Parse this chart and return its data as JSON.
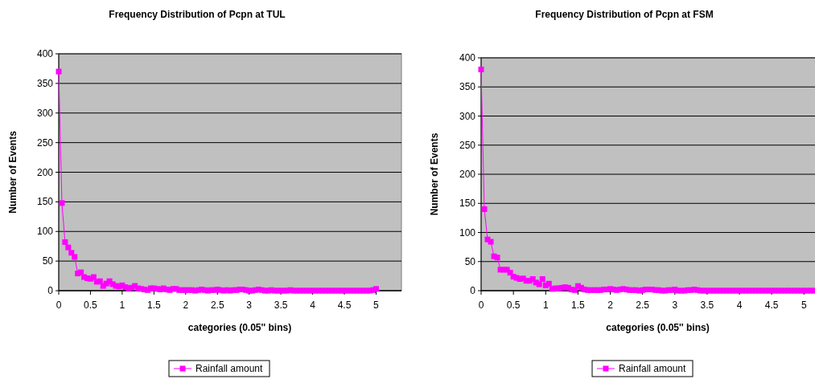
{
  "chart_data": [
    {
      "type": "line",
      "title": "Frequency Distribution of Pcpn at TUL",
      "xlabel": "categories (0.05'' bins)",
      "ylabel": "Number of Events",
      "xlim": [
        0,
        5.4
      ],
      "xticks": [
        0,
        0.5,
        1,
        1.5,
        2,
        2.5,
        3,
        3.5,
        4,
        4.5,
        5
      ],
      "ylim": [
        0,
        400
      ],
      "yticks": [
        0,
        50,
        100,
        150,
        200,
        250,
        300,
        350,
        400
      ],
      "grid": "y",
      "legend": "bottom",
      "marker": "square",
      "series": [
        {
          "name": "Rainfall amount",
          "color": "#ff00ff",
          "x": [
            0,
            0.05,
            0.1,
            0.15,
            0.2,
            0.25,
            0.3,
            0.35,
            0.4,
            0.45,
            0.5,
            0.55,
            0.6,
            0.65,
            0.7,
            0.75,
            0.8,
            0.85,
            0.9,
            0.95,
            1,
            1.05,
            1.1,
            1.15,
            1.2,
            1.25,
            1.3,
            1.35,
            1.4,
            1.45,
            1.5,
            1.55,
            1.6,
            1.65,
            1.7,
            1.75,
            1.8,
            1.85,
            1.9,
            1.95,
            2,
            2.05,
            2.1,
            2.15,
            2.2,
            2.25,
            2.3,
            2.35,
            2.4,
            2.45,
            2.5,
            2.55,
            2.6,
            2.65,
            2.7,
            2.75,
            2.8,
            2.85,
            2.9,
            2.95,
            3,
            3.05,
            3.1,
            3.15,
            3.2,
            3.25,
            3.3,
            3.35,
            3.4,
            3.45,
            3.5,
            3.55,
            3.6,
            3.65,
            3.7,
            3.75,
            3.8,
            3.85,
            3.9,
            3.95,
            4,
            4.05,
            4.1,
            4.15,
            4.2,
            4.25,
            4.3,
            4.35,
            4.4,
            4.45,
            4.5,
            4.55,
            4.6,
            4.65,
            4.7,
            4.75,
            4.8,
            4.85,
            4.9,
            4.95,
            5
          ],
          "values": [
            370,
            148,
            82,
            73,
            64,
            57,
            29,
            31,
            23,
            21,
            20,
            23,
            15,
            16,
            8,
            12,
            16,
            11,
            8,
            7,
            9,
            6,
            4,
            5,
            8,
            4,
            3,
            2,
            1,
            4,
            4,
            3,
            2,
            4,
            2,
            1,
            3,
            3,
            1,
            1,
            1,
            1,
            1,
            0,
            1,
            2,
            1,
            0,
            1,
            1,
            2,
            1,
            0,
            1,
            0,
            1,
            1,
            2,
            2,
            1,
            0,
            0,
            1,
            2,
            1,
            0,
            0,
            1,
            0,
            0,
            0,
            0,
            0,
            1,
            0,
            0,
            0,
            0,
            0,
            0,
            0,
            0,
            0,
            0,
            0,
            0,
            0,
            0,
            0,
            0,
            0,
            0,
            0,
            0,
            0,
            0,
            0,
            0,
            0,
            1,
            3
          ]
        }
      ]
    },
    {
      "type": "line",
      "title": "Frequency Distribution of Pcpn at FSM",
      "xlabel": "categories (0.05'' bins)",
      "ylabel": "Number of Events",
      "xlim": [
        0,
        5.27
      ],
      "xticks": [
        0,
        0.5,
        1,
        1.5,
        2,
        2.5,
        3,
        3.5,
        4,
        4.5,
        5
      ],
      "ylim": [
        0,
        400
      ],
      "yticks": [
        0,
        50,
        100,
        150,
        200,
        250,
        300,
        350,
        400
      ],
      "grid": "y",
      "legend": "bottom",
      "marker": "square",
      "series": [
        {
          "name": "Rainfall amount",
          "color": "#ff00ff",
          "x": [
            0,
            0.05,
            0.1,
            0.15,
            0.2,
            0.25,
            0.3,
            0.35,
            0.4,
            0.45,
            0.5,
            0.55,
            0.6,
            0.65,
            0.7,
            0.75,
            0.8,
            0.85,
            0.9,
            0.95,
            1,
            1.05,
            1.1,
            1.15,
            1.2,
            1.25,
            1.3,
            1.35,
            1.4,
            1.45,
            1.5,
            1.55,
            1.6,
            1.65,
            1.7,
            1.75,
            1.8,
            1.85,
            1.9,
            1.95,
            2,
            2.05,
            2.1,
            2.15,
            2.2,
            2.25,
            2.3,
            2.35,
            2.4,
            2.45,
            2.5,
            2.55,
            2.6,
            2.65,
            2.7,
            2.75,
            2.8,
            2.85,
            2.9,
            2.95,
            3,
            3.05,
            3.1,
            3.15,
            3.2,
            3.25,
            3.3,
            3.35,
            3.4,
            3.45,
            3.5,
            3.55,
            3.6,
            3.65,
            3.7,
            3.75,
            3.8,
            3.85,
            3.9,
            3.95,
            4,
            4.05,
            4.1,
            4.15,
            4.2,
            4.25,
            4.3,
            4.35,
            4.4,
            4.45,
            4.5,
            4.55,
            4.6,
            4.65,
            4.7,
            4.75,
            4.8,
            4.85,
            4.9,
            4.95,
            5,
            5.05,
            5.1,
            5.15,
            5.2,
            5.25
          ],
          "values": [
            380,
            140,
            88,
            84,
            59,
            57,
            36,
            36,
            36,
            31,
            24,
            22,
            20,
            21,
            17,
            17,
            20,
            14,
            11,
            20,
            9,
            12,
            3,
            4,
            4,
            5,
            6,
            5,
            2,
            1,
            8,
            5,
            2,
            1,
            1,
            1,
            1,
            1,
            2,
            2,
            3,
            2,
            1,
            2,
            3,
            2,
            1,
            1,
            1,
            0,
            1,
            2,
            2,
            2,
            1,
            1,
            0,
            0,
            1,
            1,
            2,
            0,
            0,
            0,
            1,
            1,
            2,
            1,
            0,
            0,
            0,
            0,
            0,
            0,
            0,
            0,
            0,
            0,
            0,
            0,
            0,
            0,
            0,
            0,
            0,
            0,
            0,
            0,
            0,
            0,
            0,
            0,
            0,
            0,
            0,
            0,
            0,
            0,
            0,
            0,
            0,
            0,
            0,
            0,
            0,
            0
          ]
        }
      ]
    }
  ]
}
